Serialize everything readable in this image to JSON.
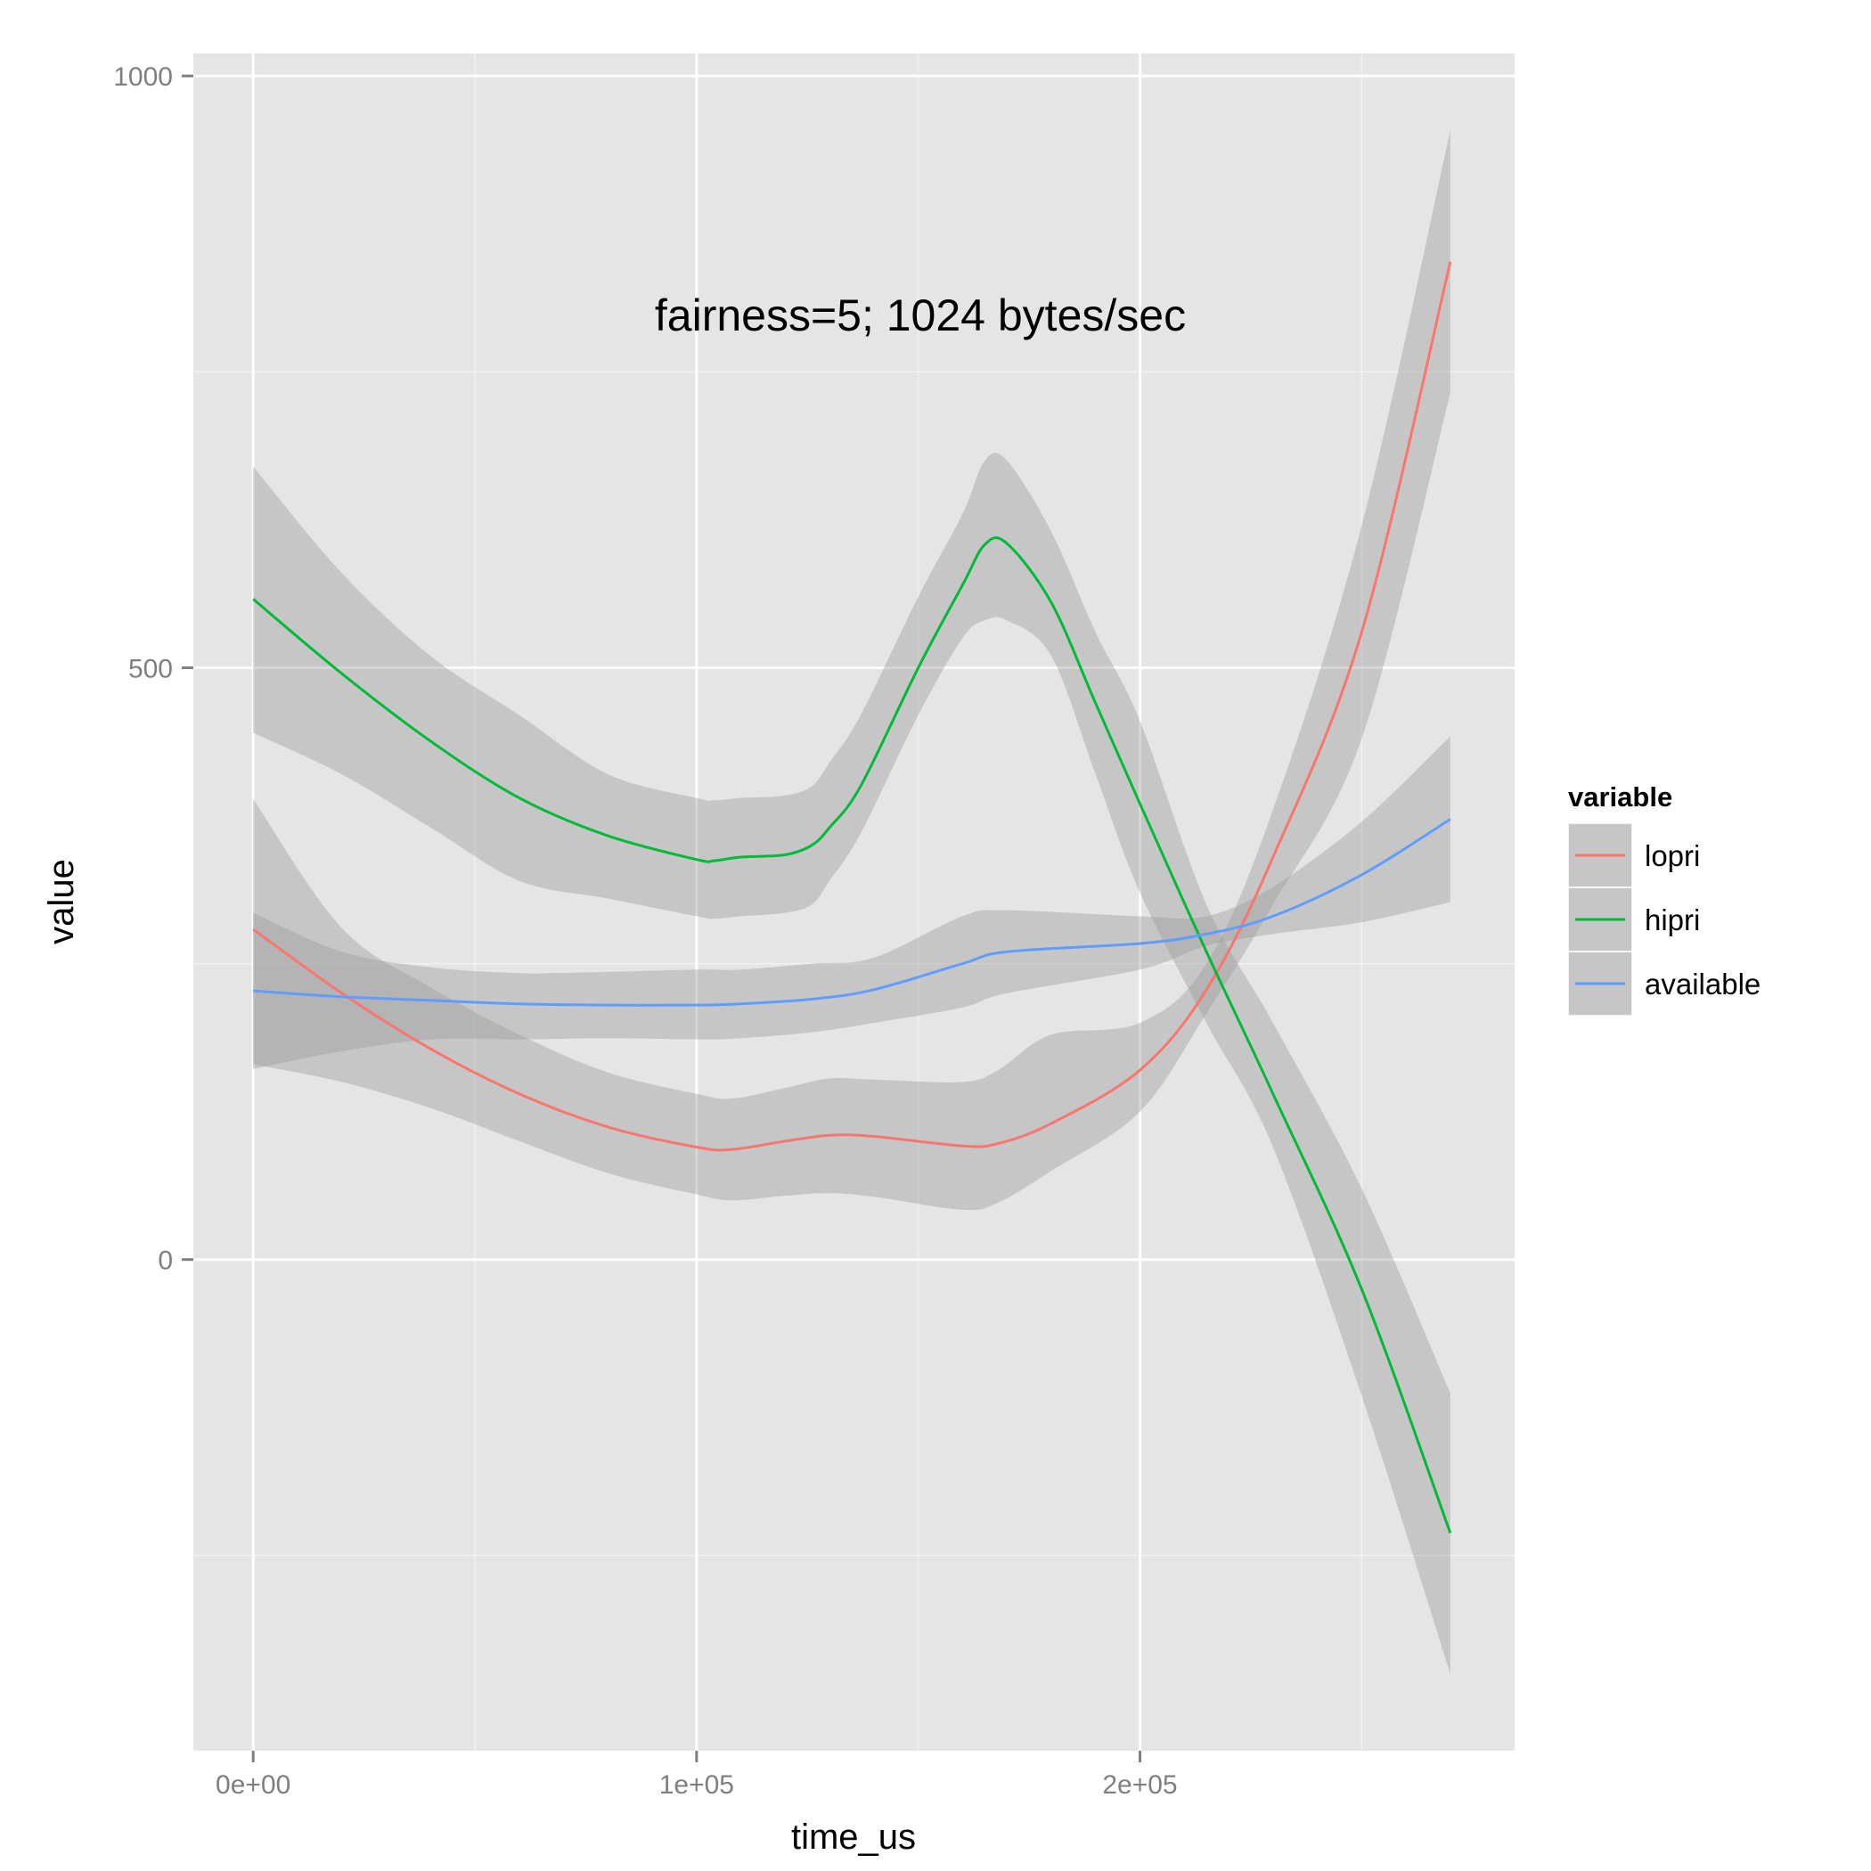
{
  "chart_data": {
    "type": "line",
    "annotation": "fairness=5; 1024 bytes/sec",
    "xlabel": "time_us",
    "ylabel": "value",
    "xlim": [
      -13500,
      284500
    ],
    "ylim": [
      -415,
      1019
    ],
    "x_ticks": [
      {
        "value": 0,
        "label": "0e+00"
      },
      {
        "value": 100000,
        "label": "1e+05"
      },
      {
        "value": 200000,
        "label": "2e+05"
      }
    ],
    "x_minor_ticks": [
      50000,
      150000,
      250000
    ],
    "y_ticks": [
      {
        "value": 0,
        "label": "0"
      },
      {
        "value": 500,
        "label": "500"
      },
      {
        "value": 1000,
        "label": "1000"
      }
    ],
    "y_minor_ticks": [
      -250,
      250,
      750
    ],
    "grid": true,
    "legend": {
      "title": "variable",
      "position": "right"
    },
    "series": [
      {
        "name": "lopri",
        "color": "#F8766D",
        "x": [
          0,
          20000,
          40000,
          60000,
          80000,
          100000,
          108000,
          120000,
          130000,
          140000,
          160000,
          168000,
          180000,
          200000,
          215000,
          230000,
          250000,
          270000
        ],
        "y": [
          279,
          225,
          178,
          140,
          112,
          95,
          93,
          100,
          105,
          104,
          96,
          98,
          115,
          160,
          228,
          340,
          530,
          843
        ],
        "lower": [
          165,
          150,
          128,
          100,
          73,
          55,
          50,
          54,
          56,
          53,
          42,
          48,
          75,
          125,
          208,
          300,
          440,
          732
        ],
        "upper": [
          389,
          280,
          230,
          190,
          158,
          140,
          136,
          145,
          153,
          152,
          150,
          160,
          190,
          200,
          250,
          380,
          620,
          954
        ]
      },
      {
        "name": "hipri",
        "color": "#00BA38",
        "x": [
          0,
          20000,
          40000,
          60000,
          80000,
          100000,
          104000,
          110000,
          120000,
          126000,
          130000,
          137000,
          150000,
          160000,
          165000,
          170000,
          180000,
          190000,
          200000,
          215000,
          230000,
          250000,
          270000
        ],
        "y": [
          558,
          495,
          438,
          390,
          358,
          338,
          337,
          340,
          342,
          350,
          365,
          400,
          500,
          570,
          604,
          605,
          555,
          470,
          385,
          260,
          140,
          -25,
          -231
        ],
        "lower": [
          445,
          410,
          365,
          320,
          305,
          290,
          288,
          290,
          293,
          300,
          320,
          360,
          460,
          525,
          540,
          540,
          510,
          410,
          310,
          200,
          95,
          -115,
          -350
        ],
        "upper": [
          670,
          580,
          510,
          460,
          410,
          390,
          388,
          390,
          392,
          400,
          420,
          460,
          560,
          630,
          675,
          675,
          615,
          530,
          455,
          300,
          200,
          60,
          -113
        ]
      },
      {
        "name": "available",
        "color": "#619CFF",
        "x": [
          0,
          20000,
          40000,
          60000,
          80000,
          100000,
          110000,
          126000,
          140000,
          160000,
          170000,
          200000,
          215000,
          230000,
          250000,
          270000
        ],
        "y": [
          227,
          222,
          219,
          216,
          215,
          215,
          216,
          220,
          228,
          250,
          260,
          267,
          275,
          290,
          325,
          372
        ],
        "lower": [
          161,
          176,
          186,
          186,
          187,
          186,
          187,
          192,
          200,
          213,
          225,
          245,
          265,
          275,
          285,
          302
        ],
        "upper": [
          293,
          260,
          247,
          242,
          243,
          245,
          245,
          250,
          255,
          290,
          295,
          290,
          290,
          315,
          370,
          442
        ]
      }
    ]
  }
}
